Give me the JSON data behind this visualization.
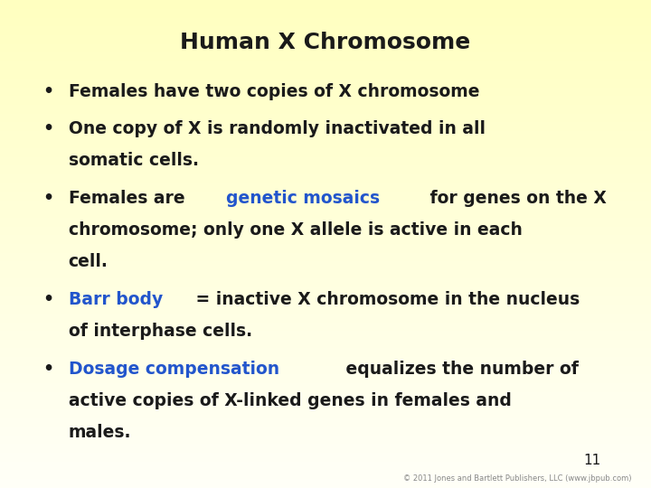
{
  "title": "Human X Chromosome",
  "title_fontsize": 18,
  "background_top": "#ffffc0",
  "background_bottom": "#fffff8",
  "text_color": "#1a1a1a",
  "highlight_color": "#2255cc",
  "body_fontsize": 13.5,
  "page_number": "11",
  "copyright": "© 2011 Jones and Bartlett Publishers, LLC (www.jbpub.com)",
  "bullets": [
    {
      "lines": [
        [
          {
            "text": "Females have two copies of X chromosome",
            "color": "#1a1a1a"
          }
        ]
      ]
    },
    {
      "lines": [
        [
          {
            "text": "One copy of X is randomly inactivated in all",
            "color": "#1a1a1a"
          }
        ],
        [
          {
            "text": "somatic cells.",
            "color": "#1a1a1a"
          }
        ]
      ]
    },
    {
      "lines": [
        [
          {
            "text": "Females are ",
            "color": "#1a1a1a"
          },
          {
            "text": "genetic mosaics",
            "color": "#2255cc"
          },
          {
            "text": " for genes on the X",
            "color": "#1a1a1a"
          }
        ],
        [
          {
            "text": "chromosome; only one X allele is active in each",
            "color": "#1a1a1a"
          }
        ],
        [
          {
            "text": "cell.",
            "color": "#1a1a1a"
          }
        ]
      ]
    },
    {
      "lines": [
        [
          {
            "text": "Barr body",
            "color": "#2255cc"
          },
          {
            "text": " = inactive X chromosome in the nucleus",
            "color": "#1a1a1a"
          }
        ],
        [
          {
            "text": "of interphase cells.",
            "color": "#1a1a1a"
          }
        ]
      ]
    },
    {
      "lines": [
        [
          {
            "text": "Dosage compensation",
            "color": "#2255cc"
          },
          {
            "text": " equalizes the number of",
            "color": "#1a1a1a"
          }
        ],
        [
          {
            "text": "active copies of X-linked genes in females and",
            "color": "#1a1a1a"
          }
        ],
        [
          {
            "text": "males.",
            "color": "#1a1a1a"
          }
        ]
      ]
    }
  ]
}
